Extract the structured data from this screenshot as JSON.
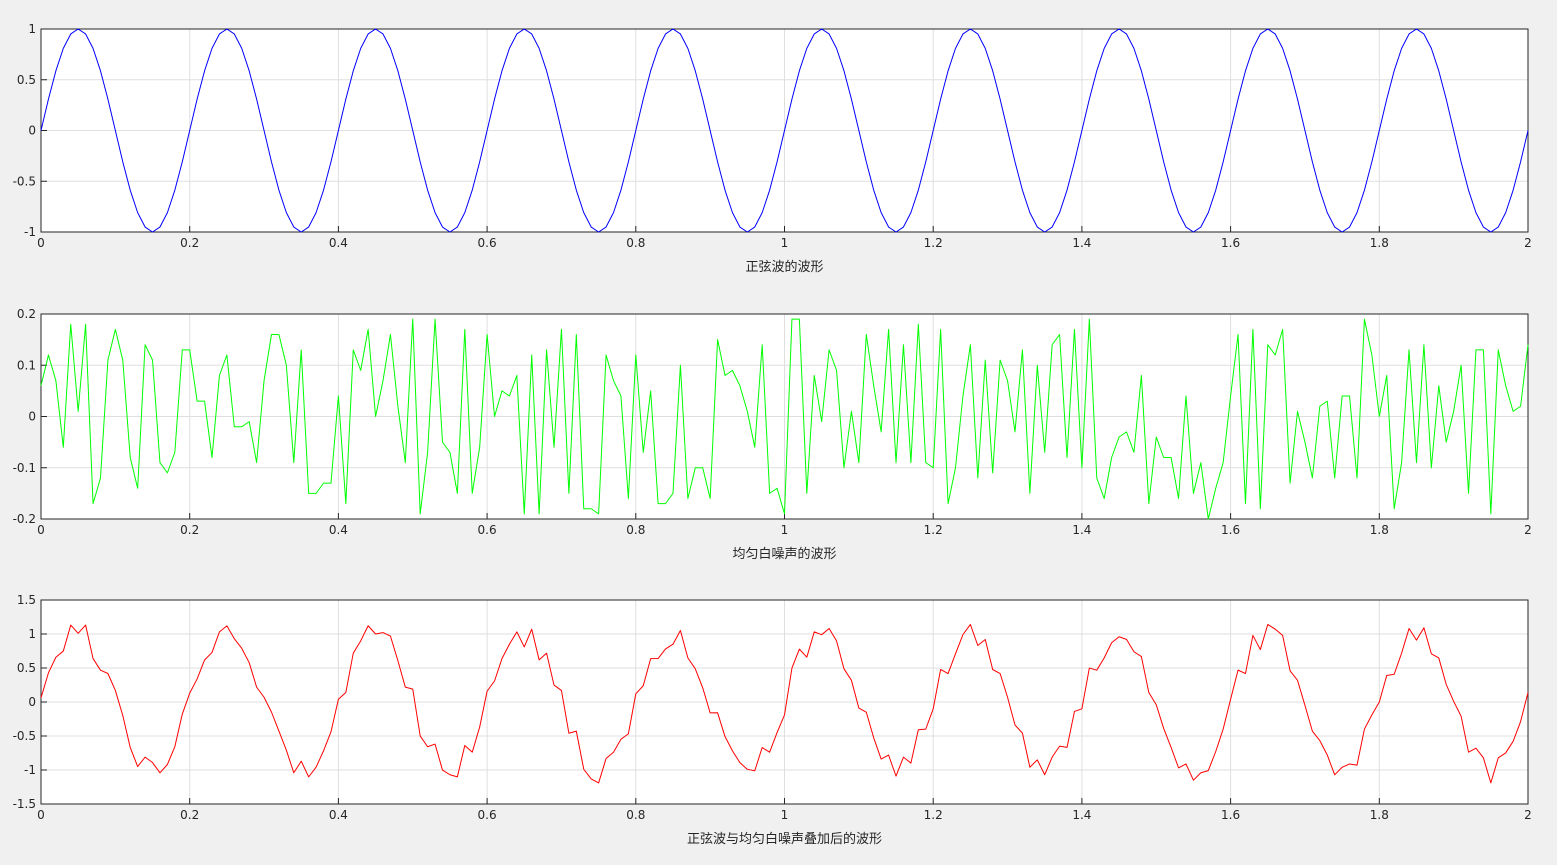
{
  "chart_data": [
    {
      "type": "line",
      "xlabel": "正弦波的波形",
      "color": "#0000ff",
      "grid": true,
      "xlim": [
        0,
        2
      ],
      "ylim": [
        -1,
        1
      ],
      "xticks": [
        0,
        0.2,
        0.4,
        0.6,
        0.8,
        1,
        1.2,
        1.4,
        1.6,
        1.8,
        2
      ],
      "yticks": [
        -1,
        -0.5,
        0,
        0.5,
        1
      ],
      "x": [
        0,
        0.01,
        0.02,
        0.03,
        0.04,
        0.05,
        0.06,
        0.07,
        0.08,
        0.09,
        0.1,
        0.11,
        0.12,
        0.13,
        0.14,
        0.15,
        0.16,
        0.17,
        0.18,
        0.19,
        0.2,
        0.21,
        0.22,
        0.23,
        0.24,
        0.25,
        0.26,
        0.27,
        0.28,
        0.29,
        0.3,
        0.31,
        0.32,
        0.33,
        0.34,
        0.35,
        0.36,
        0.37,
        0.38,
        0.39,
        0.4,
        0.41,
        0.42,
        0.43,
        0.44,
        0.45,
        0.46,
        0.47,
        0.48,
        0.49,
        0.5,
        0.51,
        0.52,
        0.53,
        0.54,
        0.55,
        0.56,
        0.57,
        0.58,
        0.59,
        0.6,
        0.61,
        0.62,
        0.63,
        0.64,
        0.65,
        0.66,
        0.67,
        0.68,
        0.69,
        0.7,
        0.71,
        0.72,
        0.73,
        0.74,
        0.75,
        0.76,
        0.77,
        0.78,
        0.79,
        0.8,
        0.81,
        0.82,
        0.83,
        0.84,
        0.85,
        0.86,
        0.87,
        0.88,
        0.89,
        0.9,
        0.91,
        0.92,
        0.93,
        0.94,
        0.95,
        0.96,
        0.97,
        0.98,
        0.99,
        1,
        1.01,
        1.02,
        1.03,
        1.04,
        1.05,
        1.06,
        1.07,
        1.08,
        1.09,
        1.1,
        1.11,
        1.12,
        1.13,
        1.14,
        1.15,
        1.16,
        1.17,
        1.18,
        1.19,
        1.2,
        1.21,
        1.22,
        1.23,
        1.24,
        1.25,
        1.26,
        1.27,
        1.28,
        1.29,
        1.3,
        1.31,
        1.32,
        1.33,
        1.34,
        1.35,
        1.36,
        1.37,
        1.38,
        1.39,
        1.4,
        1.41,
        1.42,
        1.43,
        1.44,
        1.45,
        1.46,
        1.47,
        1.48,
        1.49,
        1.5,
        1.51,
        1.52,
        1.53,
        1.54,
        1.55,
        1.56,
        1.57,
        1.58,
        1.59,
        1.6,
        1.61,
        1.62,
        1.63,
        1.64,
        1.65,
        1.66,
        1.67,
        1.68,
        1.69,
        1.7,
        1.71,
        1.72,
        1.73,
        1.74,
        1.75,
        1.76,
        1.77,
        1.78,
        1.79,
        1.8,
        1.81,
        1.82,
        1.83,
        1.84,
        1.85,
        1.86,
        1.87,
        1.88,
        1.89,
        1.9,
        1.91,
        1.92,
        1.93,
        1.94,
        1.95,
        1.96,
        1.97,
        1.98,
        1.99,
        2
      ],
      "values": [
        0,
        0.309,
        0.588,
        0.809,
        0.951,
        1,
        0.951,
        0.809,
        0.588,
        0.309,
        0,
        -0.309,
        -0.588,
        -0.809,
        -0.951,
        -1,
        -0.951,
        -0.809,
        -0.588,
        -0.309,
        0,
        0.309,
        0.588,
        0.809,
        0.951,
        1,
        0.951,
        0.809,
        0.588,
        0.309,
        0,
        -0.309,
        -0.588,
        -0.809,
        -0.951,
        -1,
        -0.951,
        -0.809,
        -0.588,
        -0.309,
        0,
        0.309,
        0.588,
        0.809,
        0.951,
        1,
        0.951,
        0.809,
        0.588,
        0.309,
        0,
        -0.309,
        -0.588,
        -0.809,
        -0.951,
        -1,
        -0.951,
        -0.809,
        -0.588,
        -0.309,
        0,
        0.309,
        0.588,
        0.809,
        0.951,
        1,
        0.951,
        0.809,
        0.588,
        0.309,
        0,
        -0.309,
        -0.588,
        -0.809,
        -0.951,
        -1,
        -0.951,
        -0.809,
        -0.588,
        -0.309,
        0,
        0.309,
        0.588,
        0.809,
        0.951,
        1,
        0.951,
        0.809,
        0.588,
        0.309,
        0,
        -0.309,
        -0.588,
        -0.809,
        -0.951,
        -1,
        -0.951,
        -0.809,
        -0.588,
        -0.309,
        0,
        0.309,
        0.588,
        0.809,
        0.951,
        1,
        0.951,
        0.809,
        0.588,
        0.309,
        0,
        -0.309,
        -0.588,
        -0.809,
        -0.951,
        -1,
        -0.951,
        -0.809,
        -0.588,
        -0.309,
        0,
        0.309,
        0.588,
        0.809,
        0.951,
        1,
        0.951,
        0.809,
        0.588,
        0.309,
        0,
        -0.309,
        -0.588,
        -0.809,
        -0.951,
        -1,
        -0.951,
        -0.809,
        -0.588,
        -0.309,
        0,
        0.309,
        0.588,
        0.809,
        0.951,
        1,
        0.951,
        0.809,
        0.588,
        0.309,
        0,
        -0.309,
        -0.588,
        -0.809,
        -0.951,
        -1,
        -0.951,
        -0.809,
        -0.588,
        -0.309,
        0,
        0.309,
        0.588,
        0.809,
        0.951,
        1,
        0.951,
        0.809,
        0.588,
        0.309,
        0,
        -0.309,
        -0.588,
        -0.809,
        -0.951,
        -1,
        -0.951,
        -0.809,
        -0.588,
        -0.309,
        0,
        0.309,
        0.588,
        0.809,
        0.951,
        1,
        0.951,
        0.809,
        0.588,
        0.309,
        0,
        -0.309,
        -0.588,
        -0.809,
        -0.951,
        -1,
        -0.951,
        -0.809,
        -0.588,
        -0.309,
        0
      ]
    },
    {
      "type": "line",
      "xlabel": "均匀白噪声的波形",
      "color": "#00ff00",
      "grid": true,
      "xlim": [
        0,
        2
      ],
      "ylim": [
        -0.2,
        0.2
      ],
      "xticks": [
        0,
        0.2,
        0.4,
        0.6,
        0.8,
        1,
        1.2,
        1.4,
        1.6,
        1.8,
        2
      ],
      "yticks": [
        -0.2,
        -0.1,
        0,
        0.1,
        0.2
      ],
      "x": [
        0,
        0.01,
        0.02,
        0.03,
        0.04,
        0.05,
        0.06,
        0.07,
        0.08,
        0.09,
        0.1,
        0.11,
        0.12,
        0.13,
        0.14,
        0.15,
        0.16,
        0.17,
        0.18,
        0.19,
        0.2,
        0.21,
        0.22,
        0.23,
        0.24,
        0.25,
        0.26,
        0.27,
        0.28,
        0.29,
        0.3,
        0.31,
        0.32,
        0.33,
        0.34,
        0.35,
        0.36,
        0.37,
        0.38,
        0.39,
        0.4,
        0.41,
        0.42,
        0.43,
        0.44,
        0.45,
        0.46,
        0.47,
        0.48,
        0.49,
        0.5,
        0.51,
        0.52,
        0.53,
        0.54,
        0.55,
        0.56,
        0.57,
        0.58,
        0.59,
        0.6,
        0.61,
        0.62,
        0.63,
        0.64,
        0.65,
        0.66,
        0.67,
        0.68,
        0.69,
        0.7,
        0.71,
        0.72,
        0.73,
        0.74,
        0.75,
        0.76,
        0.77,
        0.78,
        0.79,
        0.8,
        0.81,
        0.82,
        0.83,
        0.84,
        0.85,
        0.86,
        0.87,
        0.88,
        0.89,
        0.9,
        0.91,
        0.92,
        0.93,
        0.94,
        0.95,
        0.96,
        0.97,
        0.98,
        0.99,
        1,
        1.01,
        1.02,
        1.03,
        1.04,
        1.05,
        1.06,
        1.07,
        1.08,
        1.09,
        1.1,
        1.11,
        1.12,
        1.13,
        1.14,
        1.15,
        1.16,
        1.17,
        1.18,
        1.19,
        1.2,
        1.21,
        1.22,
        1.23,
        1.24,
        1.25,
        1.26,
        1.27,
        1.28,
        1.29,
        1.3,
        1.31,
        1.32,
        1.33,
        1.34,
        1.35,
        1.36,
        1.37,
        1.38,
        1.39,
        1.4,
        1.41,
        1.42,
        1.43,
        1.44,
        1.45,
        1.46,
        1.47,
        1.48,
        1.49,
        1.5,
        1.51,
        1.52,
        1.53,
        1.54,
        1.55,
        1.56,
        1.57,
        1.58,
        1.59,
        1.6,
        1.61,
        1.62,
        1.63,
        1.64,
        1.65,
        1.66,
        1.67,
        1.68,
        1.69,
        1.7,
        1.71,
        1.72,
        1.73,
        1.74,
        1.75,
        1.76,
        1.77,
        1.78,
        1.79,
        1.8,
        1.81,
        1.82,
        1.83,
        1.84,
        1.85,
        1.86,
        1.87,
        1.88,
        1.89,
        1.9,
        1.91,
        1.92,
        1.93,
        1.94,
        1.95,
        1.96,
        1.97,
        1.98,
        1.99,
        2
      ],
      "values": [
        0.06,
        0.12,
        0.07,
        -0.06,
        0.18,
        0.01,
        0.18,
        -0.17,
        -0.12,
        0.11,
        0.17,
        0.11,
        -0.08,
        -0.14,
        0.14,
        0.11,
        -0.09,
        -0.11,
        -0.07,
        0.13,
        0.13,
        0.03,
        0.03,
        -0.08,
        0.08,
        0.12,
        -0.02,
        -0.02,
        -0.01,
        -0.09,
        0.07,
        0.16,
        0.16,
        0.1,
        -0.09,
        0.13,
        -0.15,
        -0.15,
        -0.13,
        -0.13,
        0.04,
        -0.17,
        0.13,
        0.09,
        0.17,
        0,
        0.07,
        0.16,
        0.02,
        -0.09,
        0.19,
        -0.19,
        -0.07,
        0.19,
        -0.05,
        -0.07,
        -0.15,
        0.17,
        -0.15,
        -0.06,
        0.16,
        0,
        0.05,
        0.04,
        0.08,
        -0.19,
        0.12,
        -0.19,
        0.13,
        -0.06,
        0.17,
        -0.15,
        0.16,
        -0.18,
        -0.18,
        -0.19,
        0.12,
        0.07,
        0.04,
        -0.16,
        0.12,
        -0.07,
        0.05,
        -0.17,
        -0.17,
        -0.15,
        0.1,
        -0.16,
        -0.1,
        -0.1,
        -0.16,
        0.15,
        0.08,
        0.09,
        0.06,
        0.01,
        -0.06,
        0.14,
        -0.15,
        -0.14,
        -0.19,
        0.19,
        0.19,
        -0.15,
        0.08,
        -0.01,
        0.13,
        0.09,
        -0.1,
        0.01,
        -0.09,
        0.16,
        0.06,
        -0.03,
        0.17,
        -0.09,
        0.14,
        -0.09,
        0.18,
        -0.09,
        -0.1,
        0.17,
        -0.17,
        -0.1,
        0.04,
        0.14,
        -0.12,
        0.11,
        -0.11,
        0.11,
        0.07,
        -0.03,
        0.13,
        -0.15,
        0.1,
        -0.07,
        0.14,
        0.16,
        -0.08,
        0.17,
        -0.1,
        0.19,
        -0.12,
        -0.16,
        -0.08,
        -0.04,
        -0.03,
        -0.07,
        0.08,
        -0.17,
        -0.04,
        -0.08,
        -0.08,
        -0.16,
        0.04,
        -0.15,
        -0.09,
        -0.2,
        -0.14,
        -0.09,
        0.04,
        0.16,
        -0.17,
        0.17,
        -0.18,
        0.14,
        0.12,
        0.17,
        -0.13,
        0.01,
        -0.05,
        -0.12,
        0.02,
        0.03,
        -0.12,
        0.04,
        0.04,
        -0.12,
        0.19,
        0.12,
        0,
        0.08,
        -0.18,
        -0.09,
        0.13,
        -0.09,
        0.14,
        -0.1,
        0.06,
        -0.05,
        0.01,
        0.1,
        -0.15,
        0.13,
        0.13,
        -0.19,
        0.13,
        0.06,
        0.01,
        0.02,
        0.14
      ]
    },
    {
      "type": "line",
      "xlabel": "正弦波与均匀白噪声叠加后的波形",
      "color": "#ff0000",
      "grid": true,
      "xlim": [
        0,
        2
      ],
      "ylim": [
        -1.5,
        1.5
      ],
      "xticks": [
        0,
        0.2,
        0.4,
        0.6,
        0.8,
        1,
        1.2,
        1.4,
        1.6,
        1.8,
        2
      ],
      "yticks": [
        -1.5,
        -1,
        -0.5,
        0,
        0.5,
        1,
        1.5
      ],
      "x": [
        0,
        0.01,
        0.02,
        0.03,
        0.04,
        0.05,
        0.06,
        0.07,
        0.08,
        0.09,
        0.1,
        0.11,
        0.12,
        0.13,
        0.14,
        0.15,
        0.16,
        0.17,
        0.18,
        0.19,
        0.2,
        0.21,
        0.22,
        0.23,
        0.24,
        0.25,
        0.26,
        0.27,
        0.28,
        0.29,
        0.3,
        0.31,
        0.32,
        0.33,
        0.34,
        0.35,
        0.36,
        0.37,
        0.38,
        0.39,
        0.4,
        0.41,
        0.42,
        0.43,
        0.44,
        0.45,
        0.46,
        0.47,
        0.48,
        0.49,
        0.5,
        0.51,
        0.52,
        0.53,
        0.54,
        0.55,
        0.56,
        0.57,
        0.58,
        0.59,
        0.6,
        0.61,
        0.62,
        0.63,
        0.64,
        0.65,
        0.66,
        0.67,
        0.68,
        0.69,
        0.7,
        0.71,
        0.72,
        0.73,
        0.74,
        0.75,
        0.76,
        0.77,
        0.78,
        0.79,
        0.8,
        0.81,
        0.82,
        0.83,
        0.84,
        0.85,
        0.86,
        0.87,
        0.88,
        0.89,
        0.9,
        0.91,
        0.92,
        0.93,
        0.94,
        0.95,
        0.96,
        0.97,
        0.98,
        0.99,
        1,
        1.01,
        1.02,
        1.03,
        1.04,
        1.05,
        1.06,
        1.07,
        1.08,
        1.09,
        1.1,
        1.11,
        1.12,
        1.13,
        1.14,
        1.15,
        1.16,
        1.17,
        1.18,
        1.19,
        1.2,
        1.21,
        1.22,
        1.23,
        1.24,
        1.25,
        1.26,
        1.27,
        1.28,
        1.29,
        1.3,
        1.31,
        1.32,
        1.33,
        1.34,
        1.35,
        1.36,
        1.37,
        1.38,
        1.39,
        1.4,
        1.41,
        1.42,
        1.43,
        1.44,
        1.45,
        1.46,
        1.47,
        1.48,
        1.49,
        1.5,
        1.51,
        1.52,
        1.53,
        1.54,
        1.55,
        1.56,
        1.57,
        1.58,
        1.59,
        1.6,
        1.61,
        1.62,
        1.63,
        1.64,
        1.65,
        1.66,
        1.67,
        1.68,
        1.69,
        1.7,
        1.71,
        1.72,
        1.73,
        1.74,
        1.75,
        1.76,
        1.77,
        1.78,
        1.79,
        1.8,
        1.81,
        1.82,
        1.83,
        1.84,
        1.85,
        1.86,
        1.87,
        1.88,
        1.89,
        1.9,
        1.91,
        1.92,
        1.93,
        1.94,
        1.95,
        1.96,
        1.97,
        1.98,
        1.99,
        2
      ],
      "values": [
        0.06,
        0.429,
        0.658,
        0.749,
        1.131,
        1.01,
        1.131,
        0.639,
        0.468,
        0.419,
        0.17,
        -0.199,
        -0.668,
        -0.949,
        -0.811,
        -0.89,
        -1.041,
        -0.919,
        -0.658,
        -0.179,
        0.13,
        0.339,
        0.618,
        0.729,
        1.031,
        1.12,
        0.931,
        0.789,
        0.578,
        0.219,
        0.07,
        -0.149,
        -0.428,
        -0.709,
        -1.041,
        -0.87,
        -1.101,
        -0.959,
        -0.718,
        -0.439,
        0.04,
        0.139,
        0.718,
        0.899,
        1.121,
        1,
        1.021,
        0.969,
        0.608,
        0.219,
        0.19,
        -0.499,
        -0.658,
        -0.619,
        -1.001,
        -1.07,
        -1.101,
        -0.639,
        -0.738,
        -0.369,
        0.16,
        0.309,
        0.638,
        0.849,
        1.031,
        0.81,
        1.071,
        0.619,
        0.718,
        0.249,
        0.17,
        -0.459,
        -0.428,
        -0.989,
        -1.131,
        -1.19,
        -0.831,
        -0.739,
        -0.548,
        -0.469,
        0.12,
        0.239,
        0.638,
        0.639,
        0.781,
        0.85,
        1.051,
        0.649,
        0.488,
        0.209,
        -0.16,
        -0.159,
        -0.508,
        -0.719,
        -0.891,
        -0.99,
        -1.011,
        -0.669,
        -0.738,
        -0.449,
        -0.19,
        0.499,
        0.778,
        0.659,
        1.031,
        0.99,
        1.081,
        0.899,
        0.488,
        0.319,
        -0.09,
        -0.149,
        -0.528,
        -0.839,
        -0.781,
        -1.09,
        -0.811,
        -0.899,
        -0.408,
        -0.399,
        -0.1,
        0.479,
        0.418,
        0.709,
        0.991,
        1.14,
        0.831,
        0.919,
        0.478,
        0.419,
        0.07,
        -0.339,
        -0.458,
        -0.959,
        -0.851,
        -1.07,
        -0.811,
        -0.649,
        -0.668,
        -0.139,
        -0.1,
        0.499,
        0.468,
        0.649,
        0.871,
        0.96,
        0.921,
        0.739,
        0.668,
        0.139,
        -0.04,
        -0.389,
        -0.668,
        -0.969,
        -0.911,
        -1.15,
        -1.041,
        -1.009,
        -0.728,
        -0.399,
        0.04,
        0.469,
        0.418,
        0.979,
        0.771,
        1.14,
        1.071,
        0.979,
        0.458,
        0.319,
        -0.05,
        -0.429,
        -0.568,
        -0.779,
        -1.071,
        -0.96,
        -0.911,
        -0.929,
        -0.398,
        -0.189,
        0,
        0.389,
        0.408,
        0.719,
        1.081,
        0.91,
        1.091,
        0.709,
        0.648,
        0.259,
        0.01,
        -0.209,
        -0.738,
        -0.679,
        -0.821,
        -1.19,
        -0.821,
        -0.749,
        -0.578,
        -0.289,
        0.14
      ]
    }
  ]
}
